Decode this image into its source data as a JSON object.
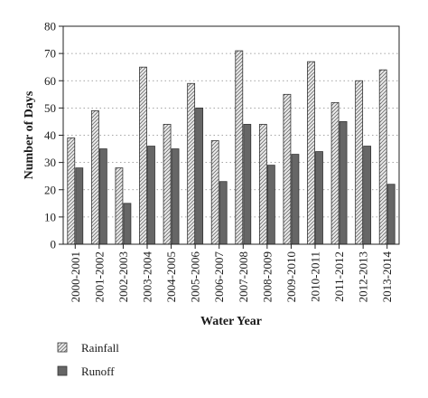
{
  "chart_data": {
    "type": "bar",
    "xlabel": "Water Year",
    "ylabel": "Number of Days",
    "ylim": [
      0,
      80
    ],
    "yticks": [
      0,
      10,
      20,
      30,
      40,
      50,
      60,
      70,
      80
    ],
    "grid": "horizontal dotted",
    "legend_position": "bottom-left",
    "categories": [
      "2000-2001",
      "2001-2002",
      "2002-2003",
      "2003-2004",
      "2004-2005",
      "2005-2006",
      "2006-2007",
      "2007-2008",
      "2008-2009",
      "2009-2010",
      "2010-2011",
      "2011-2012",
      "2012-2013",
      "2013-2014"
    ],
    "series": [
      {
        "name": "Rainfall",
        "pattern": "hatched",
        "color": "#e8e8e8",
        "values": [
          39,
          49,
          28,
          65,
          44,
          59,
          38,
          71,
          44,
          55,
          67,
          52,
          60,
          64
        ]
      },
      {
        "name": "Runoff",
        "pattern": "solid",
        "color": "#666666",
        "values": [
          28,
          35,
          15,
          36,
          35,
          50,
          23,
          44,
          29,
          33,
          34,
          45,
          36,
          22
        ]
      }
    ]
  }
}
